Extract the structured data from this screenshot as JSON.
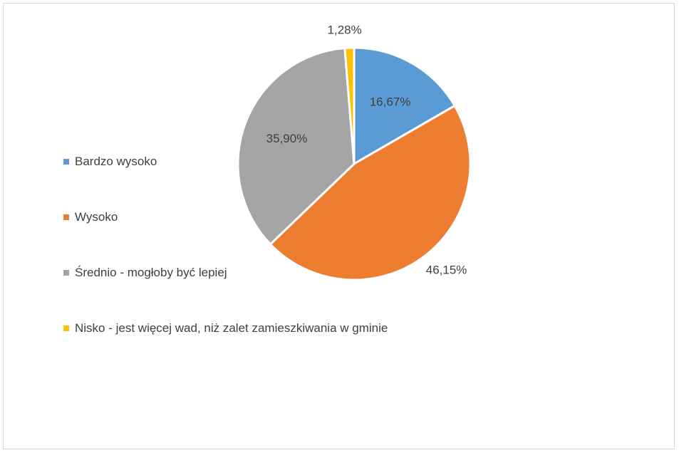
{
  "chart_data": {
    "type": "pie",
    "categories": [
      "Bardzo wysoko",
      "Wysoko",
      "Średnio - mogłoby być lepiej",
      "Nisko - jest więcej wad, niż zalet zamieszkiwania w gminie"
    ],
    "values": [
      16.67,
      46.15,
      35.9,
      1.28
    ],
    "data_labels": [
      "16,67%",
      "46,15%",
      "35,90%",
      "1,28%"
    ],
    "colors": [
      "#5b9bd5",
      "#ed7d31",
      "#a5a5a5",
      "#ffc000"
    ],
    "legend_position": "left"
  }
}
